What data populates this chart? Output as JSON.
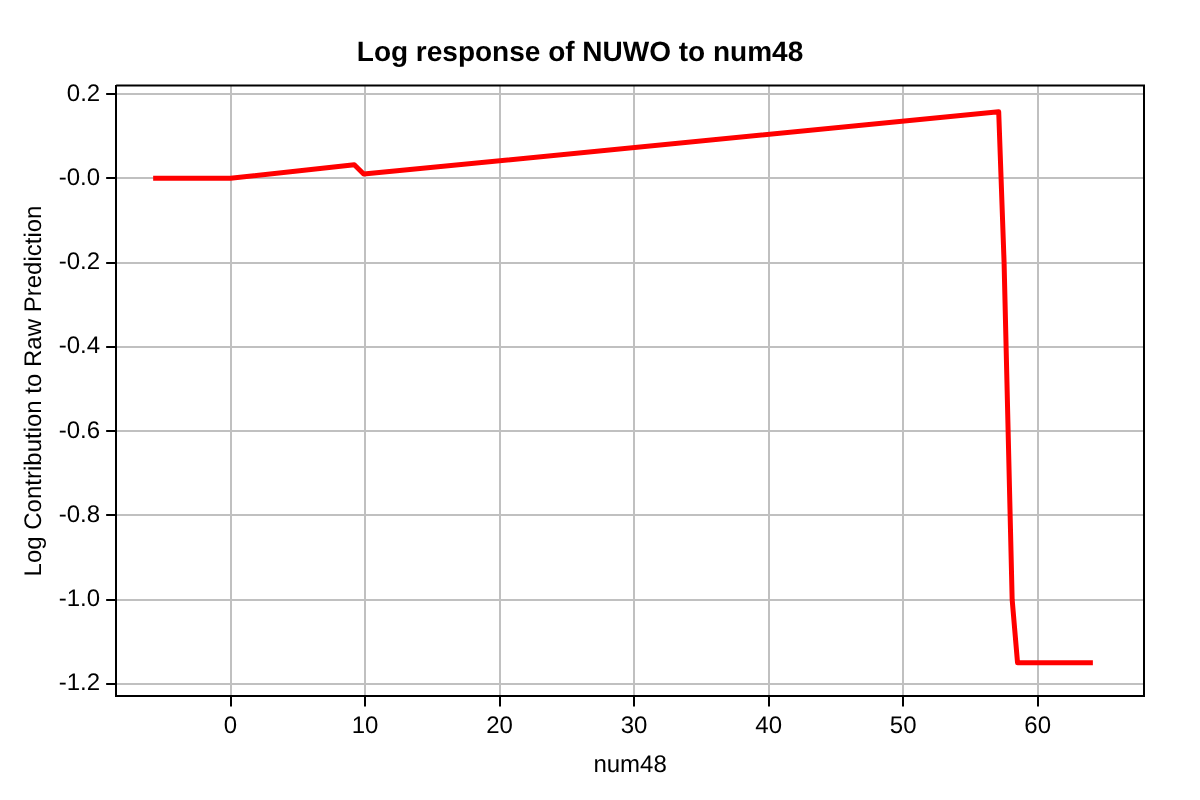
{
  "chart_data": {
    "type": "line",
    "title": "Log response of NUWO to num48",
    "xlabel": "num48",
    "ylabel": "Log Contribution to Raw Prediction",
    "series": [
      {
        "color": "#ff0000",
        "x": [
          -5.75,
          0,
          9.2,
          9.9,
          57.1,
          57.5,
          58.1,
          58.5,
          64.1
        ],
        "values": [
          0,
          0,
          0.032,
          0.01,
          0.158,
          -0.2,
          -1.0,
          -1.15,
          -1.15
        ]
      }
    ],
    "xlim": [
      -8.5,
      67.9
    ],
    "ylim": [
      -1.23,
      0.22
    ],
    "xticks": [
      0,
      10,
      20,
      30,
      40,
      50,
      60
    ],
    "yticks": [
      -1.2,
      {
        "value": -1,
        "label": "-1.0"
      },
      -0.8,
      -0.6,
      -0.4,
      -0.2,
      {
        "value": 0,
        "label": "-0.0"
      },
      0.2
    ],
    "grid": true,
    "legend": false,
    "marker": "none",
    "line_style": "solid"
  }
}
